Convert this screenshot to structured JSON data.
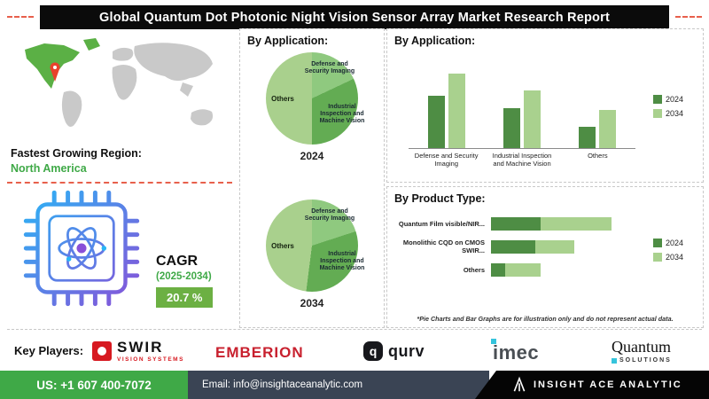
{
  "header": {
    "title": "Global Quantum Dot Photonic Night Vision Sensor Array Market Research Report"
  },
  "colors": {
    "accent_green": "#3FA947",
    "cagr_box_green": "#6CB043",
    "series_2024": "#4E8D44",
    "series_2034": "#A9D18E",
    "brand_red": "#e8604c"
  },
  "region": {
    "label": "Fastest Growing Region:",
    "value": "North America"
  },
  "cagr": {
    "label": "CAGR",
    "period": "(2025-2034)",
    "value": "20.7 %"
  },
  "pie_section": {
    "heading": "By Application:",
    "charts": [
      {
        "year": "2024"
      },
      {
        "year": "2034"
      }
    ]
  },
  "app_bar_section": {
    "heading": "By Application:"
  },
  "product_section": {
    "heading": "By Product Type:",
    "footnote": "*Pie Charts and Bar Graphs are for illustration only and do not represent actual data."
  },
  "key_players": {
    "label": "Key Players:",
    "logos": [
      {
        "name": "SWIR",
        "sub": "VISION SYSTEMS"
      },
      {
        "name": "EMBERION"
      },
      {
        "name": "qurv"
      },
      {
        "name": "imec"
      },
      {
        "name": "Quantum",
        "sub": "SOLUTIONS"
      }
    ]
  },
  "footer": {
    "phone": "US: +1 607 400-7072",
    "email": "Email: info@insightaceanalytic.com",
    "brand": "INSIGHT ACE ANALYTIC"
  },
  "chart_data": [
    {
      "type": "pie",
      "title": "By Application - 2024",
      "labels": [
        "Defense and Security Imaging",
        "Industrial Inspection and Machine Vision",
        "Others"
      ],
      "values": [
        18,
        32,
        50
      ],
      "colors": [
        "#8FC97F",
        "#63AC53",
        "#A9D08D"
      ],
      "note": "illustrative only"
    },
    {
      "type": "pie",
      "title": "By Application - 2034",
      "labels": [
        "Defense and Security Imaging",
        "Industrial Inspection and Machine Vision",
        "Others"
      ],
      "values": [
        20,
        32,
        48
      ],
      "colors": [
        "#8FC97F",
        "#63AC53",
        "#A9D08D"
      ],
      "note": "illustrative only"
    },
    {
      "type": "bar",
      "title": "By Application",
      "categories": [
        "Defense and Security Imaging",
        "Industrial Inspection and Machine Vision",
        "Others"
      ],
      "series": [
        {
          "name": "2024",
          "color": "#4E8D44",
          "values": [
            55,
            42,
            22
          ]
        },
        {
          "name": "2034",
          "color": "#A9D18E",
          "values": [
            78,
            60,
            40
          ]
        }
      ],
      "ylim": [
        0,
        85
      ],
      "legend_position": "right",
      "grid": false,
      "note": "illustrative only"
    },
    {
      "type": "bar",
      "orientation": "horizontal-stacked",
      "title": "By Product Type",
      "categories": [
        "Quantum Film visible/NIR...",
        "Monolithic CQD on CMOS SWIR...",
        "Others"
      ],
      "series": [
        {
          "name": "2024",
          "color": "#4E8D44",
          "values": [
            28,
            25,
            8
          ]
        },
        {
          "name": "2034",
          "color": "#A9D18E",
          "values": [
            40,
            22,
            20
          ]
        }
      ],
      "legend_position": "right",
      "note": "illustrative only"
    }
  ]
}
